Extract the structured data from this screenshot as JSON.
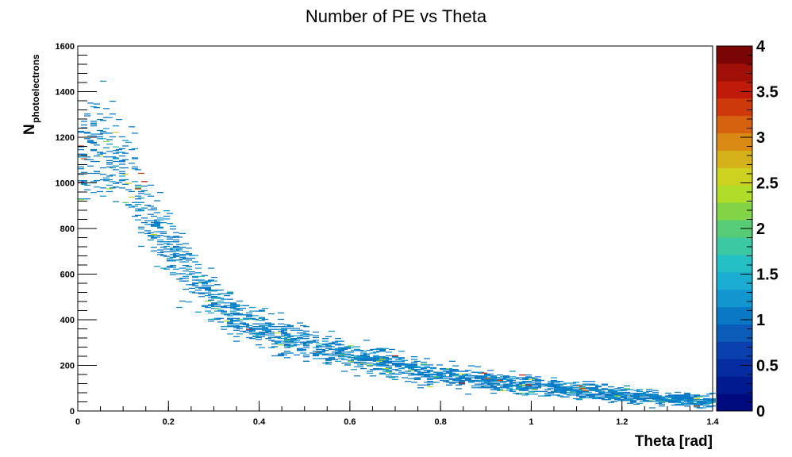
{
  "chart_data": {
    "type": "heatmap",
    "title": "Number of PE vs Theta",
    "xlabel": "Theta [rad]",
    "ylabel_main": "N",
    "ylabel_sub": "photoelectrons",
    "xlim": [
      0,
      1.4
    ],
    "ylim": [
      0,
      1600
    ],
    "x_ticks": [
      "0",
      "0.2",
      "0.4",
      "0.6",
      "0.8",
      "1",
      "1.2",
      "1.4"
    ],
    "y_ticks": [
      "0",
      "200",
      "400",
      "600",
      "800",
      "1000",
      "1200",
      "1400",
      "1600"
    ],
    "z_range": [
      0,
      4
    ],
    "z_ticks": [
      "0",
      "0.5",
      "1",
      "1.5",
      "2",
      "2.5",
      "3",
      "3.5",
      "4"
    ],
    "grid": false,
    "palette": [
      "#000a7f",
      "#001b90",
      "#052ba0",
      "#0a3fae",
      "#0a5cb8",
      "#0a79c5",
      "#1296cf",
      "#1aadd1",
      "#25bfc6",
      "#3dc8a4",
      "#56cc76",
      "#82d446",
      "#b0dc2a",
      "#cdd220",
      "#d6b21a",
      "#d88a14",
      "#d6620f",
      "#cf3a0c",
      "#bf1a0a",
      "#a00f08",
      "#7a0505"
    ],
    "trend_description": "Scattered bins with counts mostly 1; N photoelectrons decreasing from about 1100-1500 near theta 0.05-0.1 to about 30-60 near theta 1.4",
    "trend_points": [
      {
        "x": 0.0,
        "y": 1100
      },
      {
        "x": 0.05,
        "y": 1180
      },
      {
        "x": 0.1,
        "y": 1050
      },
      {
        "x": 0.15,
        "y": 850
      },
      {
        "x": 0.2,
        "y": 720
      },
      {
        "x": 0.3,
        "y": 470
      },
      {
        "x": 0.4,
        "y": 360
      },
      {
        "x": 0.5,
        "y": 300
      },
      {
        "x": 0.6,
        "y": 240
      },
      {
        "x": 0.7,
        "y": 200
      },
      {
        "x": 0.8,
        "y": 160
      },
      {
        "x": 0.9,
        "y": 135
      },
      {
        "x": 1.0,
        "y": 110
      },
      {
        "x": 1.1,
        "y": 90
      },
      {
        "x": 1.2,
        "y": 70
      },
      {
        "x": 1.3,
        "y": 55
      },
      {
        "x": 1.4,
        "y": 40
      }
    ]
  }
}
